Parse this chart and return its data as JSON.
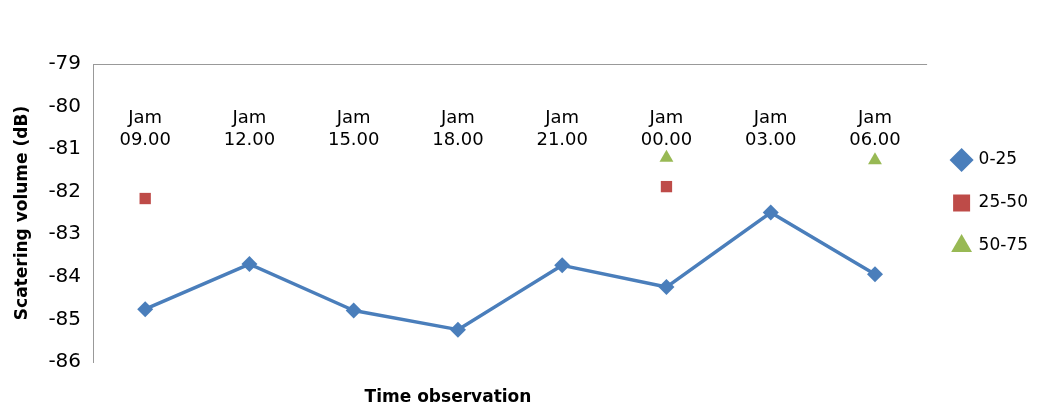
{
  "chart_data": {
    "type": "line",
    "xlabel": "Time observation",
    "ylabel": "Scatering volume (dB)",
    "categories": [
      "Jam 09.00",
      "Jam 12.00",
      "Jam 15.00",
      "Jam 18.00",
      "Jam 21.00",
      "Jam 00.00",
      "Jam 03.00",
      "Jam 06.00"
    ],
    "series": [
      {
        "name": "0-25",
        "type": "line",
        "marker": "diamond",
        "color": "#4a7ebb",
        "values": [
          -84.76,
          -83.7,
          -84.79,
          -85.24,
          -83.73,
          -84.24,
          -82.49,
          -83.94
        ]
      },
      {
        "name": "25-50",
        "type": "scatter",
        "marker": "square",
        "color": "#be4b48",
        "values": [
          -82.16,
          null,
          null,
          null,
          null,
          -81.88,
          null,
          null
        ]
      },
      {
        "name": "50-75",
        "type": "scatter",
        "marker": "triangle",
        "color": "#98b954",
        "values": [
          null,
          null,
          null,
          null,
          null,
          -81.2,
          null,
          -81.26
        ]
      }
    ],
    "ylim": [
      -86,
      -79
    ],
    "yticks": [
      -86,
      -85,
      -84,
      -83,
      -82,
      -81,
      -80,
      -79
    ],
    "grid": false,
    "legend": "right"
  }
}
